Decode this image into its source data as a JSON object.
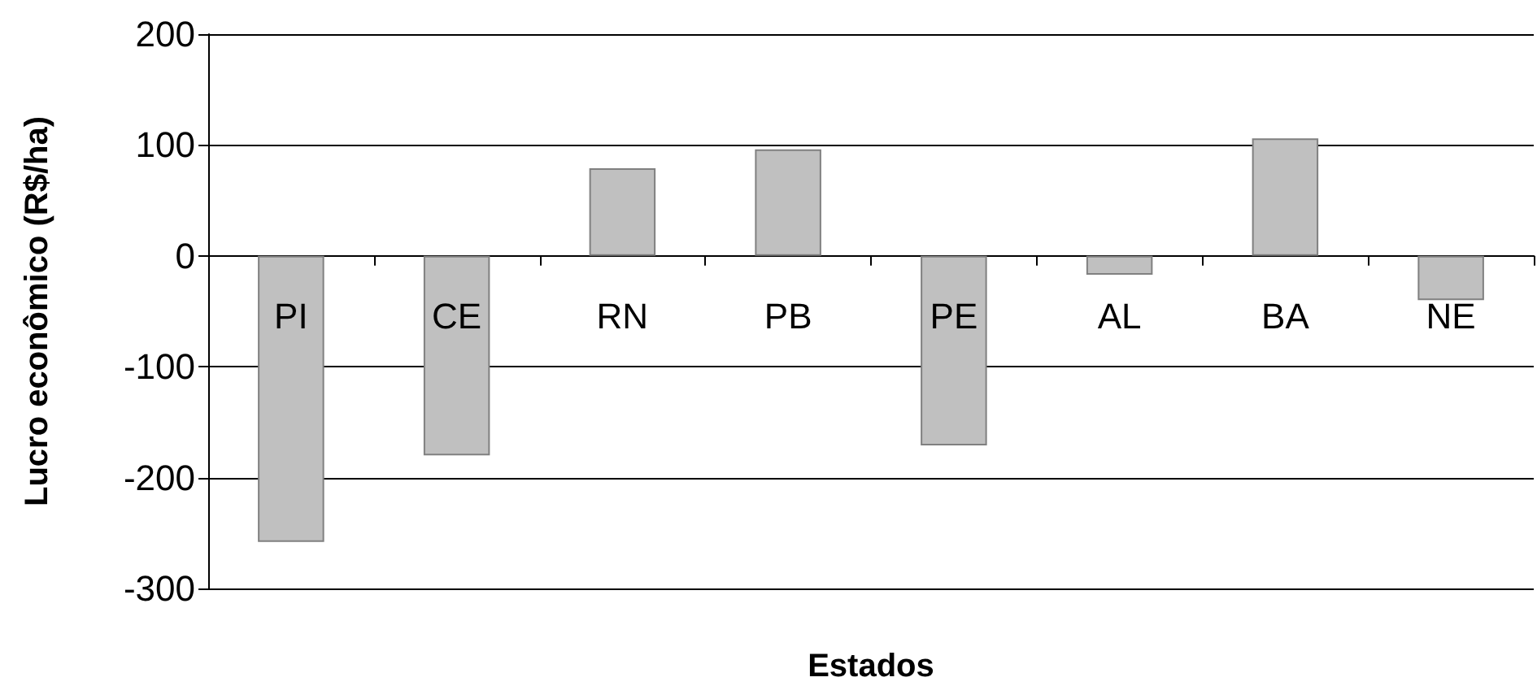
{
  "chart_data": {
    "type": "bar",
    "xlabel": "Estados",
    "ylabel": "Lucro econômico (R$/ha)",
    "categories": [
      "PI",
      "CE",
      "RN",
      "PB",
      "PE",
      "AL",
      "BA",
      "NE"
    ],
    "values": [
      -258,
      -180,
      79,
      96,
      -171,
      -17,
      106,
      -40
    ],
    "color": "#c0c0c0",
    "ylim": [
      -300,
      200
    ],
    "yticks": [
      -300,
      -200,
      -100,
      0,
      100,
      200
    ],
    "grid": "y"
  }
}
